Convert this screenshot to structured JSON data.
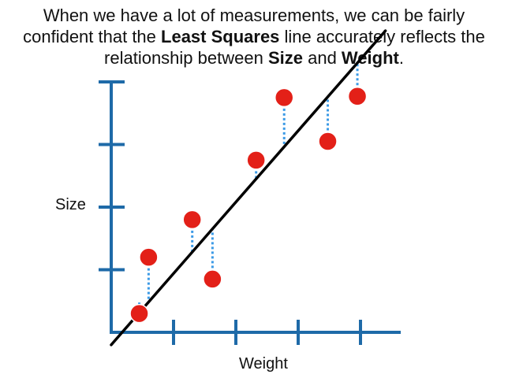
{
  "caption": {
    "line1": "When we have a lot of measurements, we can be fairly",
    "line2_pre": "confident that the ",
    "line2_bold": "Least Squares",
    "line2_post": " line accurately reflects the",
    "line3_pre": "relationship between ",
    "line3_bold1": "Size",
    "line3_mid": " and ",
    "line3_bold2": "Weight",
    "line3_post": "."
  },
  "axes": {
    "y_label": "Size",
    "x_label": "Weight",
    "y_ticks": 4,
    "x_ticks": 4
  },
  "colors": {
    "axis": "#1e6aa8",
    "points": "#e32018",
    "point_stroke": "#ffffff",
    "fit_line": "#000000",
    "residuals": "#3b9ae6"
  },
  "points": [
    {
      "x": 0.9,
      "y": 0.3
    },
    {
      "x": 1.2,
      "y": 1.2
    },
    {
      "x": 2.6,
      "y": 1.8
    },
    {
      "x": 3.25,
      "y": 0.85
    },
    {
      "x": 4.65,
      "y": 2.75
    },
    {
      "x": 5.55,
      "y": 3.75
    },
    {
      "x": 6.95,
      "y": 3.05
    },
    {
      "x": 7.9,
      "y": 3.77
    }
  ],
  "fit_line": {
    "intercept": -0.2,
    "slope": 0.57
  }
}
